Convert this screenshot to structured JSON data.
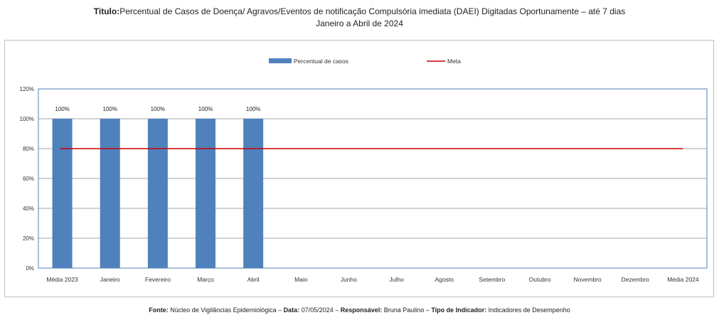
{
  "header": {
    "title_label": "Titulo:",
    "title_line1": "Percentual de Casos de Doença/ Agravos/Eventos de notificação Compulsória imediata (DAEI) Digitadas Oportunamente – até 7 dias",
    "title_line2": "Janeiro a Abril  de 2024"
  },
  "footer": {
    "fonte_label": "Fonte:",
    "fonte_value": " Núcleo de Vigilâncias Epidemiológica – ",
    "data_label": "Data:",
    "data_value": " 07/05/2024 – ",
    "responsavel_label": "Responsável:",
    "responsavel_value": " Bruna Paulino – ",
    "tipo_label": "Tipo de Indicador:",
    "tipo_value": " Indicadores de Desempenho"
  },
  "colors": {
    "bar": "#4f81bd",
    "meta": "#cc0000",
    "grid": "#868686",
    "plot_border": "#4f81bd"
  },
  "chart_data": {
    "type": "bar",
    "categories": [
      "Média 2023",
      "Janeiro",
      "Fevereiro",
      "Março",
      "Abril",
      "Maio",
      "Junho",
      "Julho",
      "Agosto",
      "Setembro",
      "Outubro",
      "Novembro",
      "Dezembro",
      "Média 2024"
    ],
    "series": [
      {
        "name": "Percentual de casos",
        "type": "bar",
        "values": [
          100,
          100,
          100,
          100,
          100,
          null,
          null,
          null,
          null,
          null,
          null,
          null,
          null,
          null
        ],
        "data_labels": [
          "100%",
          "100%",
          "100%",
          "100%",
          "100%"
        ]
      },
      {
        "name": "Meta",
        "type": "line",
        "values": [
          80,
          80,
          80,
          80,
          80,
          80,
          80,
          80,
          80,
          80,
          80,
          80,
          80,
          80
        ]
      }
    ],
    "ylim": [
      0,
      120
    ],
    "yticks": [
      "0%",
      "20%",
      "40%",
      "60%",
      "80%",
      "100%",
      "120%"
    ],
    "ytick_values": [
      0,
      20,
      40,
      60,
      80,
      100,
      120
    ],
    "grid": true,
    "legend_position": "top-center"
  }
}
